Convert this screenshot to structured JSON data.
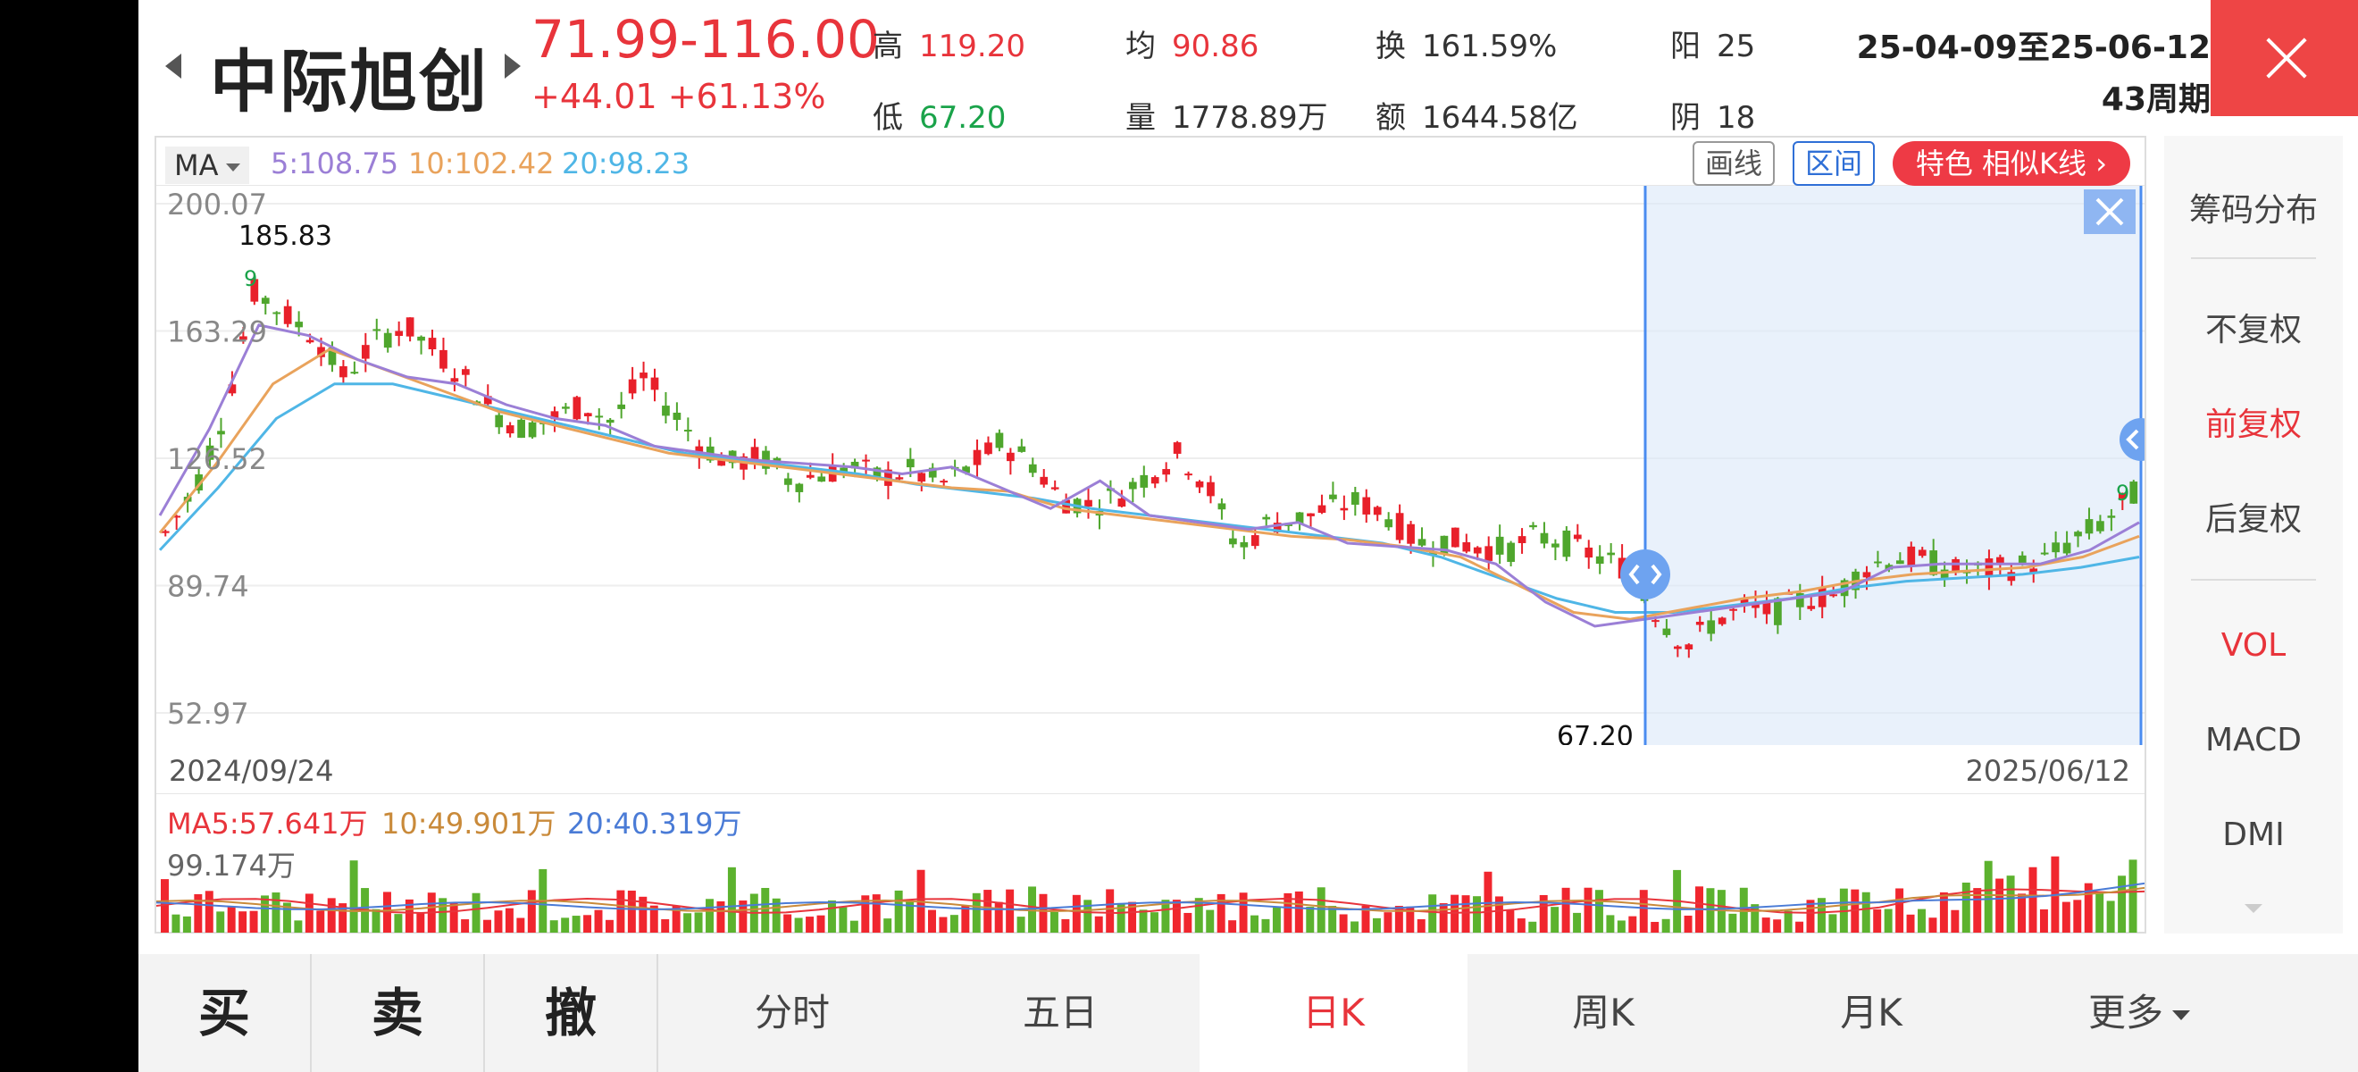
{
  "header": {
    "stock_name": "中际旭创",
    "price_range": "71.99-116.00",
    "price_change": "+44.01 +61.13%",
    "stats": [
      {
        "label": "高",
        "value": "119.20",
        "color": "red"
      },
      {
        "label": "均",
        "value": "90.86",
        "color": "red"
      },
      {
        "label": "换",
        "value": "161.59%",
        "color": "dark"
      },
      {
        "label": "阳",
        "value": "25",
        "color": "dark"
      },
      {
        "label": "低",
        "value": "67.20",
        "color": "green"
      },
      {
        "label": "量",
        "value": "1778.89万",
        "color": "dark"
      },
      {
        "label": "额",
        "value": "1644.58亿",
        "color": "dark"
      },
      {
        "label": "阴",
        "value": "18",
        "color": "dark"
      }
    ],
    "date_range": "25-04-09至25-06-12",
    "weeks": "43周期"
  },
  "ma": {
    "selector": "MA",
    "ma5": "5:108.75",
    "ma10": "10:102.42",
    "ma20": "20:98.23",
    "colors": {
      "ma5": "#9b7fd6",
      "ma10": "#e9a35c",
      "ma20": "#4fb6e6"
    }
  },
  "toolbar": {
    "draw_label": "画线",
    "range_label": "区间",
    "special_label": "特色  相似K线"
  },
  "chart": {
    "y_labels": [
      "200.07",
      "163.29",
      "126.52",
      "89.74",
      "52.97"
    ],
    "high_label": "185.83",
    "low_label": "67.20",
    "date_start": "2024/09/24",
    "date_end": "2025/06/12",
    "signal_top": "9",
    "signal_right": "9"
  },
  "volume": {
    "ma5": "MA5:57.641万",
    "ma10": "10:49.901万",
    "ma20": "20:40.319万",
    "max": "99.174万"
  },
  "side": {
    "items": [
      "筹码分布",
      "不复权",
      "前复权",
      "后复权",
      "VOL",
      "MACD",
      "DMI"
    ],
    "active": [
      "前复权",
      "VOL"
    ]
  },
  "bottom": {
    "buy": "买",
    "sell": "卖",
    "cancel": "撤",
    "tabs": [
      "分时",
      "五日",
      "日K",
      "周K",
      "月K",
      "更多"
    ],
    "selected": "日K"
  },
  "chart_data": {
    "type": "candlestick",
    "x_start": "2024/09/24",
    "x_end": "2025/06/12",
    "ylim": [
      52.97,
      200.07
    ],
    "y_ticks": [
      200.07,
      163.29,
      126.52,
      89.74,
      52.97
    ],
    "high": 185.83,
    "low": 67.2,
    "close_path": [
      105,
      118,
      140,
      175,
      168,
      162,
      150,
      160,
      165,
      158,
      150,
      140,
      135,
      138,
      142,
      137,
      150,
      140,
      130,
      125,
      127,
      120,
      122,
      124,
      121,
      123,
      119,
      124,
      131,
      126,
      115,
      113,
      116,
      122,
      128,
      118,
      100,
      108,
      109,
      112,
      114,
      110,
      102,
      103,
      101,
      100,
      104,
      102,
      98,
      95,
      82,
      72,
      80,
      83,
      82,
      86,
      87,
      95,
      98,
      97,
      94,
      94,
      95,
      97,
      103,
      108,
      116
    ],
    "ma5_path": [
      110,
      135,
      165,
      162,
      155,
      150,
      148,
      142,
      138,
      136,
      130,
      128,
      126,
      125,
      124,
      122,
      124,
      118,
      112,
      120,
      110,
      108,
      106,
      108,
      102,
      101,
      100,
      96,
      85,
      78,
      80,
      82,
      84,
      86,
      88,
      95,
      96,
      96,
      96,
      100,
      108
    ],
    "ma10_path": [
      105,
      125,
      148,
      158,
      152,
      146,
      140,
      136,
      132,
      128,
      126,
      124,
      122,
      120,
      118,
      117,
      112,
      110,
      108,
      106,
      104,
      103,
      101,
      98,
      90,
      82,
      80,
      83,
      86,
      88,
      91,
      93,
      94,
      95,
      98,
      104
    ],
    "ma20_path": [
      100,
      118,
      138,
      148,
      148,
      144,
      140,
      136,
      132,
      128,
      126,
      124,
      122,
      119,
      117,
      115,
      112,
      110,
      108,
      106,
      104,
      102,
      98,
      92,
      86,
      82,
      82,
      84,
      86,
      89,
      91,
      92,
      93,
      95,
      98
    ],
    "selection": {
      "from": "25-04-09",
      "to": "25-06-12"
    }
  }
}
